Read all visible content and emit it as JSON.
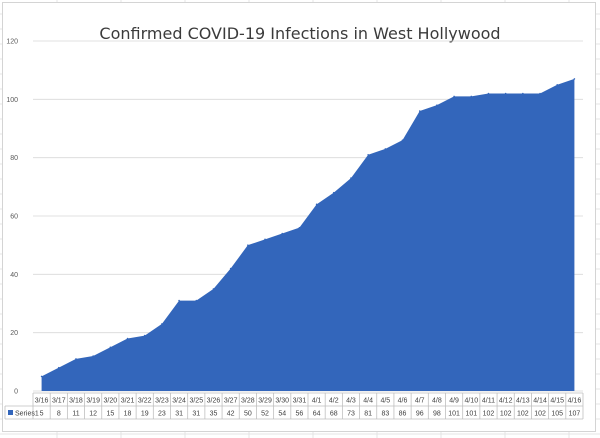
{
  "chart_data": {
    "type": "area",
    "title": "Confirmed COVID-19 Infections in West Hollywood",
    "xlabel": "",
    "ylabel": "",
    "ylim": [
      0,
      120
    ],
    "yticks": [
      0,
      20,
      40,
      60,
      80,
      100,
      120
    ],
    "gridlines": true,
    "legend": "data-table",
    "categories": [
      "3/16",
      "3/17",
      "3/18",
      "3/19",
      "3/20",
      "3/21",
      "3/22",
      "3/23",
      "3/24",
      "3/25",
      "3/26",
      "3/27",
      "3/28",
      "3/29",
      "3/30",
      "3/31",
      "4/1",
      "4/2",
      "4/3",
      "4/4",
      "4/5",
      "4/6",
      "4/7",
      "4/8",
      "4/9",
      "4/10",
      "4/11",
      "4/12",
      "4/13",
      "4/14",
      "4/15",
      "4/16"
    ],
    "series": [
      {
        "name": "Series1",
        "color": "#3366bb",
        "values": [
          5,
          8,
          11,
          12,
          15,
          18,
          19,
          23,
          31,
          31,
          35,
          42,
          50,
          52,
          54,
          56,
          64,
          68,
          73,
          81,
          83,
          86,
          96,
          98,
          101,
          101,
          102,
          102,
          102,
          102,
          105,
          107
        ]
      }
    ]
  }
}
